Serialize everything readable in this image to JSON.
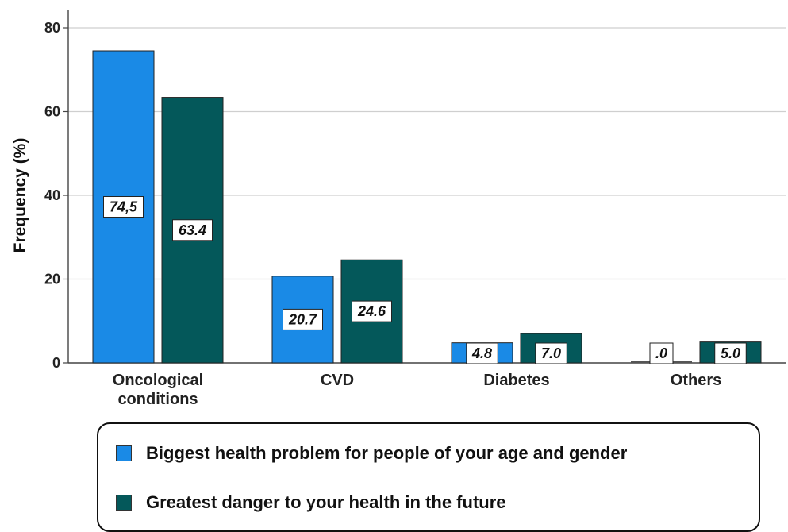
{
  "chart_data": {
    "type": "bar",
    "ylabel": "Frequency (%)",
    "ylim": [
      0,
      80
    ],
    "yticks": [
      "0",
      "20",
      "40",
      "60",
      "80"
    ],
    "categories": [
      [
        "Oncological",
        "conditions"
      ],
      [
        "CVD"
      ],
      [
        "Diabetes"
      ],
      [
        "Others"
      ]
    ],
    "series": [
      {
        "name": "Biggest health problem for people of your age and gender",
        "color": "#1a8ae6",
        "values": [
          74.5,
          20.7,
          4.8,
          0.0
        ],
        "labels": [
          "74,5",
          "20.7",
          "4.8",
          ".0"
        ]
      },
      {
        "name": "Greatest danger to your health in the future",
        "color": "#04585a",
        "values": [
          63.4,
          24.6,
          7.0,
          5.0
        ],
        "labels": [
          "63.4",
          "24.6",
          "7.0",
          "5.0"
        ]
      }
    ],
    "grid": true,
    "legend": "bottom"
  }
}
